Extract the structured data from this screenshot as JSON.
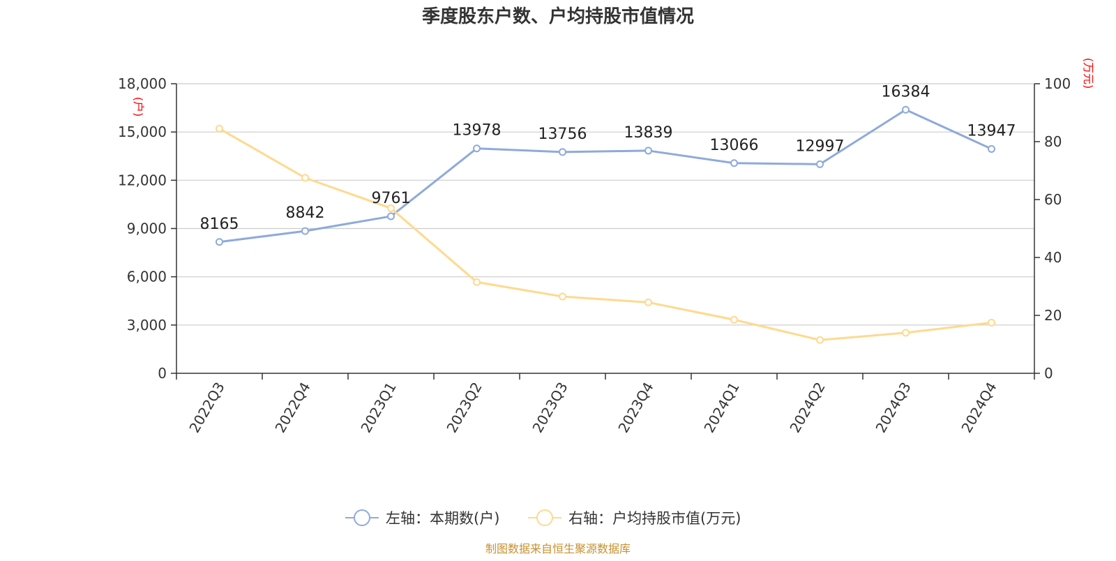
{
  "chart_data": {
    "type": "line",
    "title": "季度股东户数、户均持股市值情况",
    "categories": [
      "2022Q3",
      "2022Q4",
      "2023Q1",
      "2023Q2",
      "2023Q3",
      "2023Q4",
      "2024Q1",
      "2024Q2",
      "2024Q3",
      "2024Q4"
    ],
    "left_axis": {
      "unit": "(户)",
      "ylim": [
        0,
        18000
      ],
      "ticks": [
        0,
        3000,
        6000,
        9000,
        12000,
        15000,
        18000
      ],
      "tick_labels": [
        "0",
        "3,000",
        "6,000",
        "9,000",
        "12,000",
        "15,000",
        "18,000"
      ]
    },
    "right_axis": {
      "unit": "(万元)",
      "ylim": [
        0,
        100
      ],
      "ticks": [
        0,
        20,
        40,
        60,
        80,
        100
      ],
      "tick_labels": [
        "0",
        "20",
        "40",
        "60",
        "80",
        "100"
      ]
    },
    "grid": true,
    "legend_position": "bottom-center",
    "series": [
      {
        "name": "左轴：本期数(户)",
        "axis": "left",
        "color": "#8eaadb",
        "values": [
          8165,
          8842,
          9761,
          13978,
          13756,
          13839,
          13066,
          12997,
          16384,
          13947
        ],
        "labels": [
          "8165",
          "8842",
          "9761",
          "13978",
          "13756",
          "13839",
          "13066",
          "12997",
          "16384",
          "13947"
        ]
      },
      {
        "name": "右轴：户均持股市值(万元)",
        "axis": "right",
        "color": "#ffd98e",
        "values": [
          84.5,
          67.5,
          57.0,
          31.5,
          26.5,
          24.5,
          18.5,
          11.5,
          14.0,
          17.5
        ]
      }
    ],
    "source": "制图数据来自恒生聚源数据库"
  }
}
